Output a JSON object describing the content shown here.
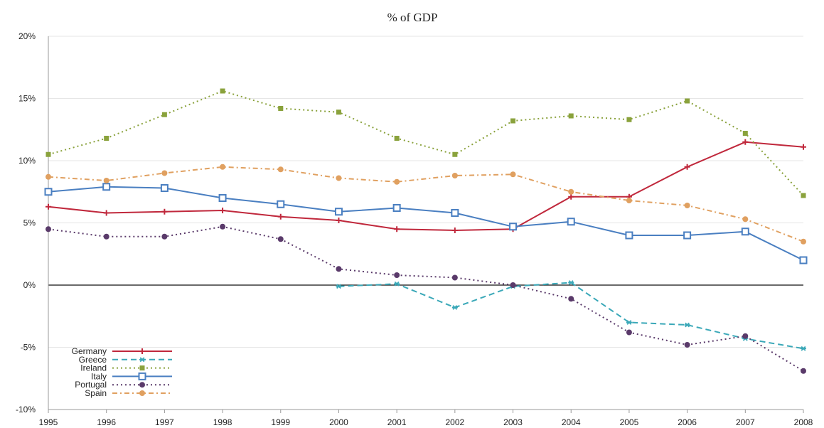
{
  "chart_data": {
    "type": "line",
    "title": "% of GDP",
    "xlabel": "",
    "ylabel": "",
    "x": [
      "1995",
      "1996",
      "1997",
      "1998",
      "1999",
      "2000",
      "2001",
      "2002",
      "2003",
      "2004",
      "2005",
      "2006",
      "2007",
      "2008"
    ],
    "ylim": [
      -10,
      20
    ],
    "yticks": [
      -10,
      -5,
      0,
      5,
      10,
      15,
      20
    ],
    "ytick_labels": [
      "-10%",
      "-5%",
      "0%",
      "5%",
      "10%",
      "15%",
      "20%"
    ],
    "grid": true,
    "legend_position": "bottom-left",
    "series": [
      {
        "name": "Germany",
        "color": "#c0283c",
        "dash": "solid",
        "marker": "plus",
        "values": [
          6.3,
          5.8,
          5.9,
          6.0,
          5.5,
          5.2,
          4.5,
          4.4,
          4.5,
          7.1,
          7.1,
          9.5,
          11.5,
          11.1
        ]
      },
      {
        "name": "Greece",
        "color": "#3aa8b8",
        "dash": "dashed",
        "marker": "star",
        "values": [
          null,
          null,
          null,
          null,
          null,
          -0.1,
          0.1,
          -1.8,
          -0.1,
          0.2,
          -3.0,
          -3.2,
          -4.3,
          -5.1
        ]
      },
      {
        "name": "Ireland",
        "color": "#8aa23c",
        "dash": "dotted",
        "marker": "square-filled",
        "values": [
          10.5,
          11.8,
          13.7,
          15.6,
          14.2,
          13.9,
          11.8,
          10.5,
          13.2,
          13.6,
          13.3,
          14.8,
          12.2,
          7.2
        ]
      },
      {
        "name": "Italy",
        "color": "#4a7fc1",
        "dash": "solid",
        "marker": "square-open",
        "values": [
          7.5,
          7.9,
          7.8,
          7.0,
          6.5,
          5.9,
          6.2,
          5.8,
          4.7,
          5.1,
          4.0,
          4.0,
          4.3,
          2.0
        ]
      },
      {
        "name": "Portugal",
        "color": "#5a3a6a",
        "dash": "dotted",
        "marker": "circle-filled",
        "values": [
          4.5,
          3.9,
          3.9,
          4.7,
          3.7,
          1.3,
          0.8,
          0.6,
          0.0,
          -1.1,
          -3.8,
          -4.8,
          -4.1,
          -6.9
        ]
      },
      {
        "name": "Spain",
        "color": "#e0a060",
        "dash": "dashdot",
        "marker": "circle-filled",
        "values": [
          8.7,
          8.4,
          9.0,
          9.5,
          9.3,
          8.6,
          8.3,
          8.8,
          8.9,
          7.5,
          6.8,
          6.4,
          5.3,
          3.5
        ]
      }
    ]
  }
}
